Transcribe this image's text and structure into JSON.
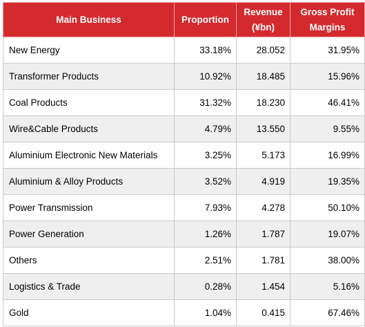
{
  "header": {
    "main_business": "Main Business",
    "proportion": "Proportion",
    "revenue_line1": "Revenue",
    "revenue_line2": "(¥bn)",
    "margin_line1": "Gross Profit",
    "margin_line2": "Margins"
  },
  "rows": [
    {
      "business": "New Energy",
      "proportion": "33.18%",
      "revenue": "28.052",
      "margin": "31.95%"
    },
    {
      "business": "Transformer Products",
      "proportion": "10.92%",
      "revenue": "18.485",
      "margin": "15.96%"
    },
    {
      "business": "Coal Products",
      "proportion": "31.32%",
      "revenue": "18.230",
      "margin": "46.41%"
    },
    {
      "business": "Wire&Cable Products",
      "proportion": "4.79%",
      "revenue": "13.550",
      "margin": "9.55%"
    },
    {
      "business": "Aluminium  Electronic New Materials",
      "proportion": "3.25%",
      "revenue": "5.173",
      "margin": "16.99%"
    },
    {
      "business": "Aluminium  & Alloy Products",
      "proportion": "3.52%",
      "revenue": "4.919",
      "margin": "19.35%"
    },
    {
      "business": "Power Transmission",
      "proportion": "7.93%",
      "revenue": "4.278",
      "margin": "50.10%"
    },
    {
      "business": "Power Generation",
      "proportion": "1.26%",
      "revenue": "1.787",
      "margin": "19.07%"
    },
    {
      "business": "Others",
      "proportion": "2.51%",
      "revenue": "1.781",
      "margin": "38.00%"
    },
    {
      "business": "Logistics & Trade",
      "proportion": "0.28%",
      "revenue": "1.454",
      "margin": "5.16%"
    },
    {
      "business": "Gold",
      "proportion": "1.04%",
      "revenue": "0.415",
      "margin": "67.46%"
    }
  ],
  "colors": {
    "header_background": "#d42a2e",
    "header_text": "#ffffff",
    "stripe_background": "#efefef"
  }
}
